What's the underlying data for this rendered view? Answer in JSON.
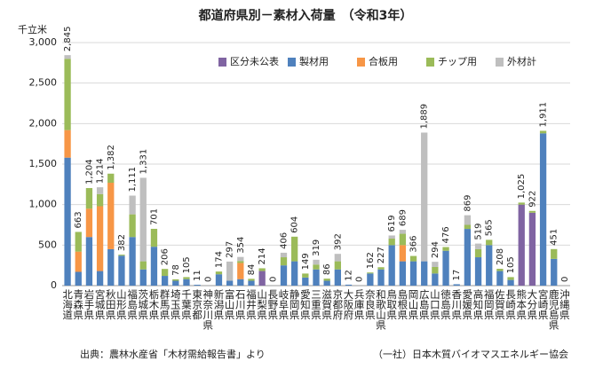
{
  "chart_data": {
    "type": "bar",
    "stacked": true,
    "title": "都道府県別－素材入荷量　（令和3年）",
    "y_label": "千立米",
    "source": "出典：農林水産省「木材需給報告書」より",
    "credit": "（一社）日本木質バイオマスエネルギー協会",
    "categories": [
      "北海道",
      "青森県",
      "岩手県",
      "宮城県",
      "秋田県",
      "山形県",
      "福島県",
      "茨城県",
      "栃木県",
      "群馬県",
      "埼玉県",
      "千葉県",
      "東京都",
      "神奈川県",
      "新潟県",
      "富山県",
      "石川県",
      "福井県",
      "山梨県",
      "長野県",
      "岐阜県",
      "静岡県",
      "愛知県",
      "三重県",
      "滋賀県",
      "京都府",
      "大阪府",
      "兵庫県",
      "奈良県",
      "和歌山県",
      "鳥取県",
      "島根県",
      "岡山県",
      "広島県",
      "山口県",
      "徳島県",
      "香川県",
      "愛媛県",
      "高知県",
      "福岡県",
      "佐賀県",
      "長崎県",
      "熊本県",
      "大分県",
      "宮崎県",
      "鹿児島県",
      "沖縄県"
    ],
    "series": [
      {
        "name": "区分未公表",
        "color": "#8064a2",
        "values": [
          0,
          0,
          0,
          0,
          0,
          0,
          0,
          0,
          0,
          0,
          0,
          0,
          0,
          0,
          0,
          0,
          0,
          0,
          180,
          0,
          0,
          0,
          0,
          0,
          0,
          0,
          0,
          0,
          0,
          0,
          0,
          0,
          0,
          0,
          0,
          0,
          0,
          0,
          0,
          0,
          0,
          0,
          1000,
          900,
          0,
          0,
          0
        ]
      },
      {
        "name": "製材用",
        "color": "#4f81bd",
        "values": [
          1580,
          170,
          600,
          180,
          450,
          370,
          600,
          200,
          480,
          120,
          60,
          80,
          11,
          0,
          140,
          60,
          80,
          60,
          0,
          0,
          250,
          300,
          100,
          200,
          60,
          200,
          12,
          0,
          150,
          200,
          500,
          300,
          300,
          300,
          150,
          430,
          17,
          700,
          350,
          500,
          180,
          70,
          0,
          0,
          1880,
          330,
          0
        ]
      },
      {
        "name": "合板用",
        "color": "#f79646",
        "values": [
          340,
          250,
          350,
          800,
          820,
          0,
          0,
          0,
          0,
          0,
          0,
          0,
          0,
          0,
          0,
          0,
          200,
          0,
          0,
          0,
          0,
          0,
          0,
          0,
          0,
          0,
          0,
          0,
          0,
          0,
          0,
          200,
          0,
          0,
          0,
          0,
          0,
          0,
          0,
          0,
          0,
          0,
          0,
          0,
          0,
          0,
          0
        ]
      },
      {
        "name": "チップ用",
        "color": "#9bbb59",
        "values": [
          880,
          243,
          254,
          150,
          112,
          12,
          280,
          100,
          221,
          86,
          18,
          25,
          0,
          0,
          34,
          0,
          24,
          24,
          34,
          0,
          100,
          304,
          49,
          60,
          26,
          100,
          0,
          0,
          12,
          27,
          80,
          140,
          66,
          0,
          80,
          46,
          0,
          50,
          100,
          65,
          28,
          35,
          25,
          22,
          31,
          121,
          0
        ]
      },
      {
        "name": "外材計",
        "color": "#bfbfbf",
        "values": [
          45,
          0,
          0,
          84,
          0,
          0,
          231,
          1031,
          0,
          0,
          0,
          0,
          0,
          0,
          0,
          237,
          50,
          0,
          0,
          0,
          56,
          0,
          0,
          59,
          0,
          92,
          0,
          0,
          0,
          0,
          39,
          49,
          0,
          1589,
          64,
          0,
          0,
          119,
          69,
          0,
          0,
          0,
          0,
          0,
          0,
          0,
          0
        ]
      }
    ],
    "totals": [
      2845,
      663,
      1204,
      1214,
      1382,
      382,
      1111,
      1331,
      701,
      206,
      78,
      105,
      11,
      0,
      174,
      297,
      354,
      84,
      214,
      0,
      406,
      604,
      149,
      319,
      86,
      392,
      12,
      0,
      162,
      227,
      619,
      689,
      366,
      1889,
      294,
      476,
      17,
      869,
      519,
      565,
      208,
      105,
      1025,
      922,
      1911,
      451,
      0
    ],
    "value_labels": [
      "2,845",
      "663",
      "1,204",
      "1,214",
      "1,382",
      "382",
      "1,111",
      "1,331",
      "701",
      "206",
      "78",
      "105",
      "11",
      "0",
      "174",
      "297",
      "354",
      "84",
      "214",
      "0",
      "406",
      "604",
      "149",
      "319",
      "86",
      "392",
      "12",
      "0",
      "162",
      "227",
      "619",
      "689",
      "366",
      "1,889",
      "294",
      "476",
      "17",
      "869",
      "519",
      "565",
      "208",
      "105",
      "1,025",
      "922",
      "1,911",
      "451",
      "0"
    ],
    "ylim": [
      0,
      3000
    ],
    "yticks": [
      0,
      {
        "value": 500,
        "label": "500"
      },
      {
        "value": 1000,
        "label": "1,000"
      },
      {
        "value": 1500,
        "label": "1,500"
      },
      {
        "value": 2000,
        "label": "2,000"
      },
      {
        "value": 2500,
        "label": "2,500"
      },
      {
        "value": 3000,
        "label": "3,000"
      }
    ],
    "grid": true,
    "legend": "top-right"
  }
}
